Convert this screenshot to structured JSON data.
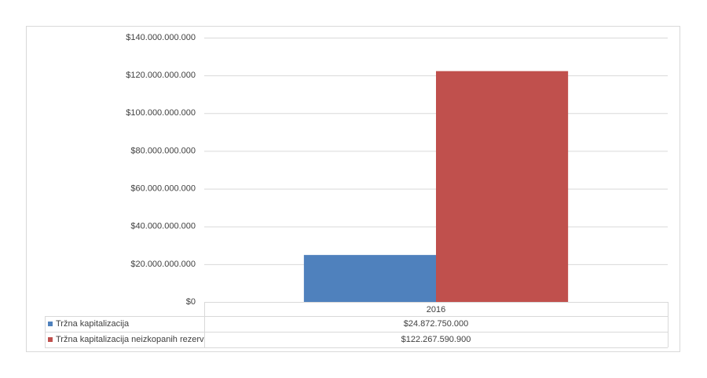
{
  "chart_data": {
    "type": "bar",
    "categories": [
      "2016"
    ],
    "series": [
      {
        "name": "Tržna kapitalizacija",
        "color": "#4f81bd",
        "values": [
          24872750000
        ],
        "value_labels": [
          "$24.872.750.000"
        ]
      },
      {
        "name": "Tržna kapitalizacija neizkopanih rezerv",
        "color": "#c0504d",
        "values": [
          122267590900
        ],
        "value_labels": [
          "$122.267.590.900"
        ]
      }
    ],
    "ylim": [
      0,
      140000000000
    ],
    "yticks": [
      {
        "value": 0,
        "label": "$0"
      },
      {
        "value": 20000000000,
        "label": "$20.000.000.000"
      },
      {
        "value": 40000000000,
        "label": "$40.000.000.000"
      },
      {
        "value": 60000000000,
        "label": "$60.000.000.000"
      },
      {
        "value": 80000000000,
        "label": "$80.000.000.000"
      },
      {
        "value": 100000000000,
        "label": "$100.000.000.000"
      },
      {
        "value": 120000000000,
        "label": "$120.000.000.000"
      },
      {
        "value": 140000000000,
        "label": "$140.000.000.000"
      }
    ],
    "grid": true
  }
}
